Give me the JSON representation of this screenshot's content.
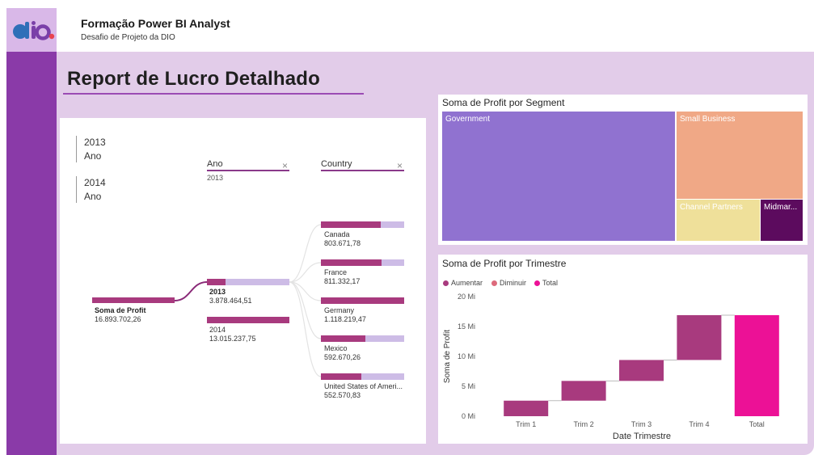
{
  "header": {
    "title": "Formação Power BI Analyst",
    "subtitle": "Desafio de Projeto da DIO",
    "logo_text": "dio."
  },
  "report": {
    "title": "Report de Lucro Detalhado"
  },
  "slicers": [
    {
      "year": "2013",
      "label": "Ano"
    },
    {
      "year": "2014",
      "label": "Ano"
    }
  ],
  "decomposition_tree": {
    "levels": [
      {
        "header": "Ano",
        "selected": "2013"
      },
      {
        "header": "Country"
      }
    ],
    "root": {
      "label": "Soma de Profit",
      "value": "16.893.702,26"
    },
    "years": [
      {
        "label": "2013",
        "value": "3.878.464,51",
        "share": 0.23
      },
      {
        "label": "2014",
        "value": "13.015.237,75",
        "share": 0.77
      }
    ],
    "countries": [
      {
        "label": "Canada",
        "value": "803.671,78",
        "share": 0.72
      },
      {
        "label": "France",
        "value": "811.332,17",
        "share": 0.73
      },
      {
        "label": "Germany",
        "value": "1.118.219,47",
        "share": 1.0
      },
      {
        "label": "Mexico",
        "value": "592.670,26",
        "share": 0.53
      },
      {
        "label": "United States of Ameri...",
        "value": "552.570,83",
        "share": 0.49
      }
    ]
  },
  "treemap": {
    "title": "Soma de Profit por Segment",
    "cells": [
      {
        "label": "Government",
        "color": "#9072d0"
      },
      {
        "label": "Small Business",
        "color": "#f0a886"
      },
      {
        "label": "Channel Partners",
        "color": "#efe09a"
      },
      {
        "label": "Midmar...",
        "color": "#5c0b5e"
      }
    ]
  },
  "waterfall": {
    "title": "Soma de Profit por Trimestre",
    "legend": [
      {
        "label": "Aumentar",
        "color": "#a83a7e"
      },
      {
        "label": "Diminuir",
        "color": "#dd6a7c"
      },
      {
        "label": "Total",
        "color": "#ec1196"
      }
    ],
    "colors": {
      "increase": "#a83a7e",
      "decrease": "#dd6a7c",
      "total": "#ec1196"
    }
  },
  "chart_data": {
    "type": "waterfall",
    "title": "Soma de Profit por Trimestre",
    "xlabel": "Date Trimestre",
    "ylabel": "Soma de Profit",
    "categories": [
      "Trim 1",
      "Trim 2",
      "Trim 3",
      "Trim 4",
      "Total"
    ],
    "deltas": [
      2.6,
      3.3,
      3.5,
      7.5,
      16.9
    ],
    "kinds": [
      "increase",
      "increase",
      "increase",
      "increase",
      "total"
    ],
    "yticks": [
      0,
      5,
      10,
      15,
      20
    ],
    "ytick_labels": [
      "0 Mi",
      "5 Mi",
      "10 Mi",
      "15 Mi",
      "20 Mi"
    ],
    "ylim": [
      0,
      20
    ],
    "unit": "Mi",
    "legend_position": "top-left"
  }
}
